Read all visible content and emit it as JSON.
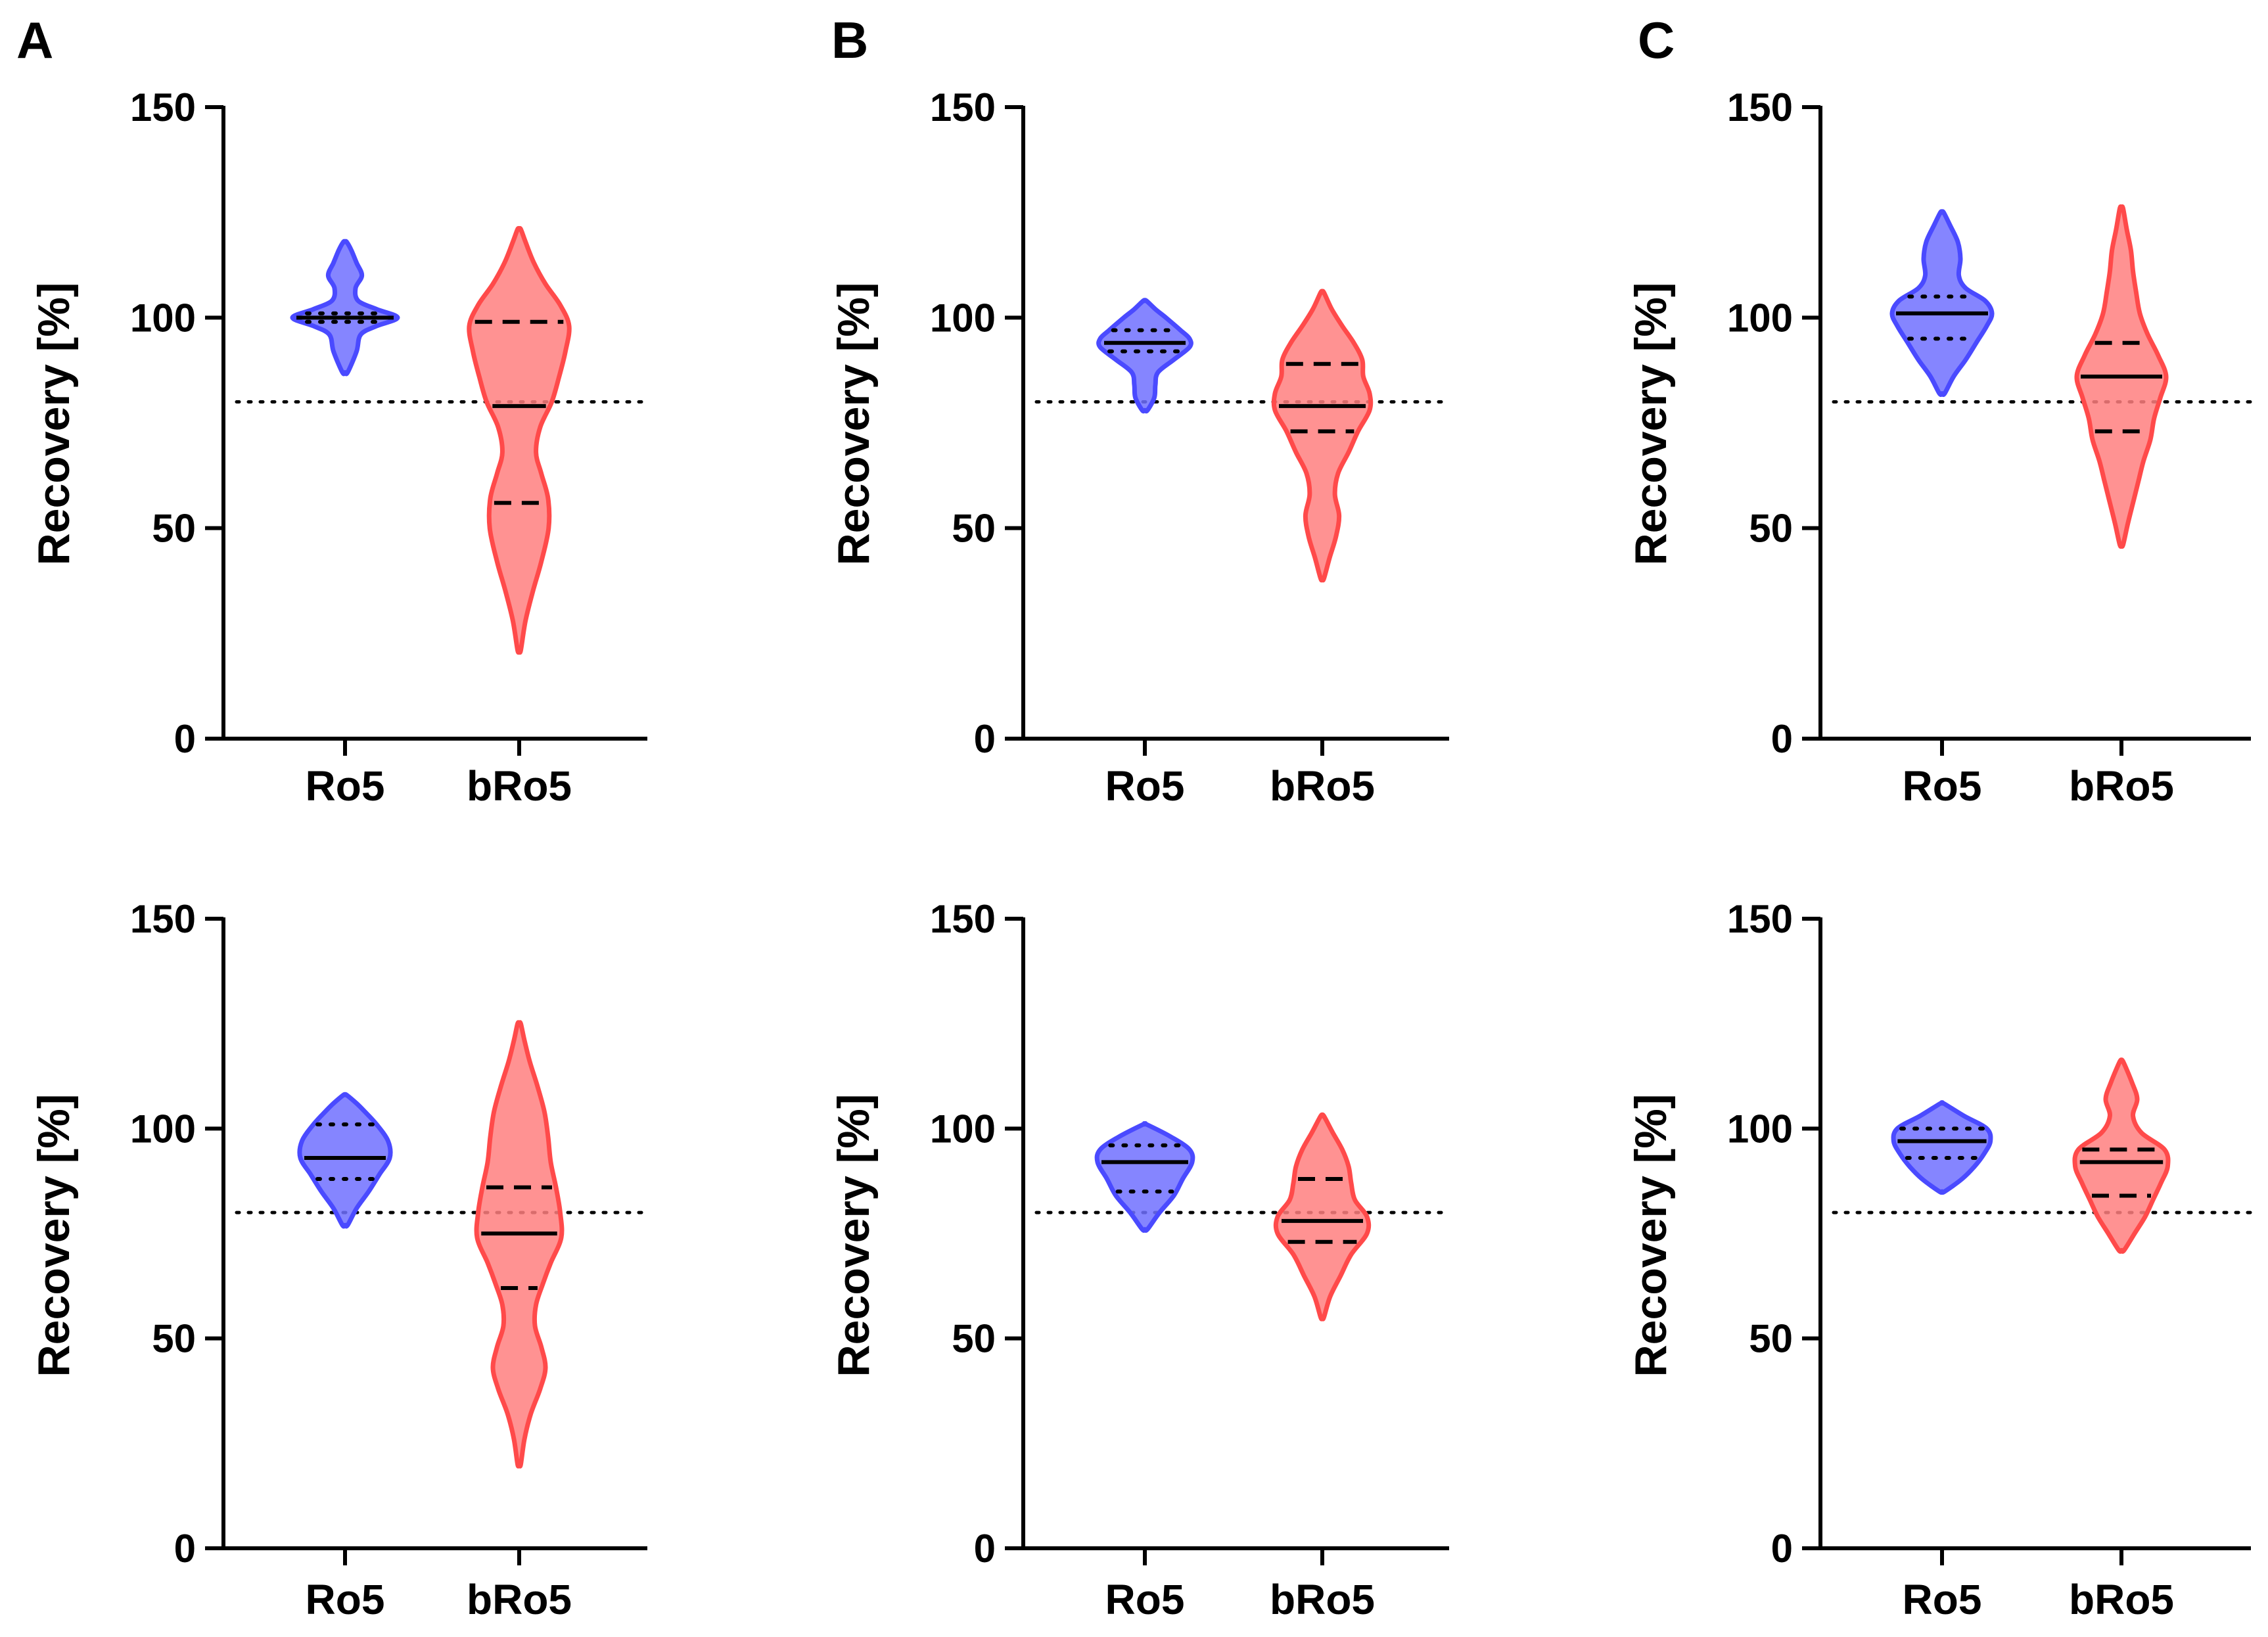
{
  "panels": [
    {
      "letter": "A"
    },
    {
      "letter": "B"
    },
    {
      "letter": "C"
    }
  ],
  "colors": {
    "ro5_fill": "#7070ff",
    "ro5_stroke": "#4a4aff",
    "bro5_fill": "#ff7f7f",
    "bro5_stroke": "#ff4a4a",
    "axis": "#000000"
  },
  "chart_data": [
    {
      "type": "violin",
      "panel": "A",
      "row": "top",
      "ylabel": "Recovery [%]",
      "ylim": [
        0,
        150
      ],
      "yticks": [
        0,
        50,
        100,
        150
      ],
      "threshold": 80,
      "categories": [
        "Ro5",
        "bRo5"
      ],
      "series": [
        {
          "name": "Ro5",
          "min": 87,
          "max": 118,
          "median": 100,
          "q1": 99,
          "q3": 101,
          "density": [
            [
              87,
              0.05
            ],
            [
              92,
              0.22
            ],
            [
              96,
              0.3
            ],
            [
              98,
              0.6
            ],
            [
              100,
              1.0
            ],
            [
              102,
              0.6
            ],
            [
              104,
              0.25
            ],
            [
              107,
              0.2
            ],
            [
              110,
              0.32
            ],
            [
              113,
              0.22
            ],
            [
              116,
              0.12
            ],
            [
              118,
              0.03
            ]
          ]
        },
        {
          "name": "bRo5",
          "min": 21,
          "max": 121,
          "median": 79,
          "q1": 56,
          "q3": 99,
          "density": [
            [
              21,
              0.03
            ],
            [
              28,
              0.12
            ],
            [
              35,
              0.26
            ],
            [
              42,
              0.42
            ],
            [
              50,
              0.56
            ],
            [
              57,
              0.55
            ],
            [
              63,
              0.42
            ],
            [
              68,
              0.32
            ],
            [
              74,
              0.4
            ],
            [
              80,
              0.62
            ],
            [
              86,
              0.76
            ],
            [
              92,
              0.88
            ],
            [
              98,
              0.95
            ],
            [
              103,
              0.78
            ],
            [
              108,
              0.5
            ],
            [
              113,
              0.28
            ],
            [
              118,
              0.12
            ],
            [
              121,
              0.03
            ]
          ]
        }
      ]
    },
    {
      "type": "violin",
      "panel": "B",
      "row": "top",
      "ylabel": "Recovery [%]",
      "ylim": [
        0,
        150
      ],
      "yticks": [
        0,
        50,
        100,
        150
      ],
      "threshold": 80,
      "categories": [
        "Ro5",
        "bRo5"
      ],
      "series": [
        {
          "name": "Ro5",
          "min": 78,
          "max": 104,
          "median": 94,
          "q1": 92,
          "q3": 97,
          "density": [
            [
              78,
              0.05
            ],
            [
              81,
              0.18
            ],
            [
              84,
              0.2
            ],
            [
              87,
              0.25
            ],
            [
              90,
              0.55
            ],
            [
              93,
              0.85
            ],
            [
              95,
              0.85
            ],
            [
              97,
              0.68
            ],
            [
              100,
              0.4
            ],
            [
              102,
              0.2
            ],
            [
              104,
              0.03
            ]
          ]
        },
        {
          "name": "bRo5",
          "min": 38,
          "max": 106,
          "median": 79,
          "q1": 73,
          "q3": 89,
          "density": [
            [
              38,
              0.03
            ],
            [
              43,
              0.14
            ],
            [
              48,
              0.26
            ],
            [
              53,
              0.32
            ],
            [
              58,
              0.24
            ],
            [
              63,
              0.3
            ],
            [
              68,
              0.5
            ],
            [
              73,
              0.68
            ],
            [
              78,
              0.9
            ],
            [
              82,
              0.9
            ],
            [
              86,
              0.78
            ],
            [
              90,
              0.76
            ],
            [
              94,
              0.6
            ],
            [
              98,
              0.38
            ],
            [
              102,
              0.18
            ],
            [
              106,
              0.03
            ]
          ]
        }
      ]
    },
    {
      "type": "violin",
      "panel": "C",
      "row": "top",
      "ylabel": "Recovery [%]",
      "ylim": [
        0,
        150
      ],
      "yticks": [
        0,
        50,
        100,
        150
      ],
      "threshold": 80,
      "categories": [
        "Ro5",
        "bRo5"
      ],
      "series": [
        {
          "name": "Ro5",
          "min": 82,
          "max": 125,
          "median": 101,
          "q1": 95,
          "q3": 105,
          "density": [
            [
              82,
              0.05
            ],
            [
              86,
              0.22
            ],
            [
              90,
              0.45
            ],
            [
              94,
              0.65
            ],
            [
              98,
              0.85
            ],
            [
              101,
              0.95
            ],
            [
              104,
              0.82
            ],
            [
              107,
              0.45
            ],
            [
              110,
              0.32
            ],
            [
              114,
              0.35
            ],
            [
              118,
              0.3
            ],
            [
              122,
              0.15
            ],
            [
              125,
              0.03
            ]
          ]
        },
        {
          "name": "bRo5",
          "min": 46,
          "max": 126,
          "median": 86,
          "q1": 73,
          "q3": 94,
          "density": [
            [
              46,
              0.03
            ],
            [
              51,
              0.12
            ],
            [
              56,
              0.22
            ],
            [
              61,
              0.32
            ],
            [
              66,
              0.42
            ],
            [
              71,
              0.55
            ],
            [
              76,
              0.62
            ],
            [
              81,
              0.74
            ],
            [
              86,
              0.85
            ],
            [
              91,
              0.7
            ],
            [
              96,
              0.5
            ],
            [
              101,
              0.35
            ],
            [
              106,
              0.28
            ],
            [
              111,
              0.22
            ],
            [
              116,
              0.18
            ],
            [
              121,
              0.1
            ],
            [
              126,
              0.03
            ]
          ]
        }
      ]
    },
    {
      "type": "violin",
      "panel": "A",
      "row": "bottom",
      "ylabel": "Recovery [%]",
      "ylim": [
        0,
        150
      ],
      "yticks": [
        0,
        50,
        100,
        150
      ],
      "threshold": 80,
      "categories": [
        "Ro5",
        "bRo5"
      ],
      "series": [
        {
          "name": "Ro5",
          "min": 77,
          "max": 108,
          "median": 93,
          "q1": 88,
          "q3": 101,
          "density": [
            [
              77,
              0.05
            ],
            [
              81,
              0.22
            ],
            [
              85,
              0.45
            ],
            [
              89,
              0.65
            ],
            [
              93,
              0.85
            ],
            [
              97,
              0.82
            ],
            [
              101,
              0.6
            ],
            [
              104,
              0.38
            ],
            [
              106,
              0.22
            ],
            [
              108,
              0.03
            ]
          ]
        },
        {
          "name": "bRo5",
          "min": 20,
          "max": 125,
          "median": 75,
          "q1": 62,
          "q3": 86,
          "density": [
            [
              20,
              0.03
            ],
            [
              26,
              0.1
            ],
            [
              32,
              0.22
            ],
            [
              38,
              0.4
            ],
            [
              43,
              0.5
            ],
            [
              48,
              0.42
            ],
            [
              53,
              0.3
            ],
            [
              58,
              0.32
            ],
            [
              63,
              0.45
            ],
            [
              68,
              0.6
            ],
            [
              74,
              0.8
            ],
            [
              80,
              0.78
            ],
            [
              86,
              0.7
            ],
            [
              92,
              0.6
            ],
            [
              98,
              0.55
            ],
            [
              104,
              0.48
            ],
            [
              110,
              0.35
            ],
            [
              116,
              0.2
            ],
            [
              121,
              0.1
            ],
            [
              125,
              0.03
            ]
          ]
        }
      ]
    },
    {
      "type": "violin",
      "panel": "B",
      "row": "bottom",
      "ylabel": "Recovery [%]",
      "ylim": [
        0,
        150
      ],
      "yticks": [
        0,
        50,
        100,
        150
      ],
      "threshold": 80,
      "categories": [
        "Ro5",
        "bRo5"
      ],
      "series": [
        {
          "name": "Ro5",
          "min": 76,
          "max": 101,
          "median": 92,
          "q1": 85,
          "q3": 96,
          "density": [
            [
              76,
              0.05
            ],
            [
              80,
              0.28
            ],
            [
              84,
              0.55
            ],
            [
              88,
              0.72
            ],
            [
              92,
              0.9
            ],
            [
              95,
              0.85
            ],
            [
              98,
              0.5
            ],
            [
              101,
              0.03
            ]
          ]
        },
        {
          "name": "bRo5",
          "min": 55,
          "max": 103,
          "median": 78,
          "q1": 73,
          "q3": 88,
          "density": [
            [
              55,
              0.03
            ],
            [
              60,
              0.15
            ],
            [
              65,
              0.35
            ],
            [
              70,
              0.55
            ],
            [
              75,
              0.85
            ],
            [
              79,
              0.85
            ],
            [
              83,
              0.62
            ],
            [
              87,
              0.55
            ],
            [
              91,
              0.5
            ],
            [
              95,
              0.38
            ],
            [
              99,
              0.2
            ],
            [
              103,
              0.03
            ]
          ]
        }
      ]
    },
    {
      "type": "violin",
      "panel": "C",
      "row": "bottom",
      "ylabel": "Recovery [%]",
      "ylim": [
        0,
        150
      ],
      "yticks": [
        0,
        50,
        100,
        150
      ],
      "threshold": 80,
      "categories": [
        "Ro5",
        "bRo5"
      ],
      "series": [
        {
          "name": "Ro5",
          "min": 85,
          "max": 106,
          "median": 97,
          "q1": 93,
          "q3": 100,
          "density": [
            [
              85,
              0.05
            ],
            [
              88,
              0.38
            ],
            [
              91,
              0.62
            ],
            [
              94,
              0.8
            ],
            [
              97,
              0.92
            ],
            [
              100,
              0.85
            ],
            [
              103,
              0.42
            ],
            [
              106,
              0.03
            ]
          ]
        },
        {
          "name": "bRo5",
          "min": 71,
          "max": 116,
          "median": 92,
          "q1": 84,
          "q3": 95,
          "density": [
            [
              71,
              0.05
            ],
            [
              75,
              0.25
            ],
            [
              79,
              0.45
            ],
            [
              83,
              0.6
            ],
            [
              87,
              0.75
            ],
            [
              91,
              0.88
            ],
            [
              95,
              0.82
            ],
            [
              99,
              0.38
            ],
            [
              103,
              0.22
            ],
            [
              107,
              0.3
            ],
            [
              111,
              0.2
            ],
            [
              116,
              0.03
            ]
          ]
        }
      ]
    }
  ]
}
